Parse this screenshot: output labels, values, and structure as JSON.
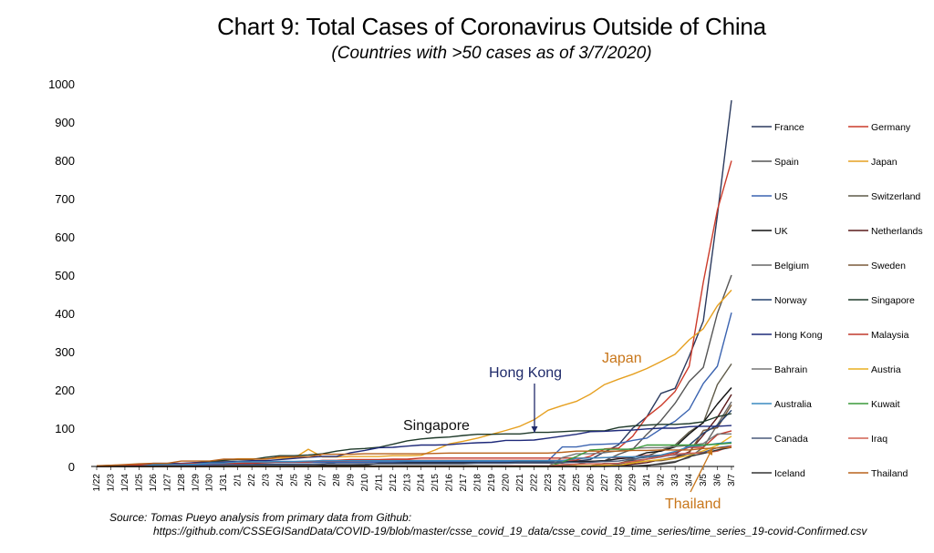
{
  "chart_data": {
    "type": "line",
    "title": "Chart 9: Total Cases of Coronavirus Outside of China",
    "subtitle": "(Countries with >50 cases as of 3/7/2020)",
    "xlabel": "",
    "ylabel": "",
    "ylim": [
      0,
      1000
    ],
    "yticks": [
      "0",
      "100",
      "200",
      "300",
      "400",
      "500",
      "600",
      "700",
      "800",
      "900",
      "1000"
    ],
    "categories": [
      "1/22",
      "1/23",
      "1/24",
      "1/25",
      "1/26",
      "1/27",
      "1/28",
      "1/29",
      "1/30",
      "1/31",
      "2/1",
      "2/2",
      "2/3",
      "2/4",
      "2/5",
      "2/6",
      "2/7",
      "2/8",
      "2/9",
      "2/10",
      "2/11",
      "2/12",
      "2/13",
      "2/14",
      "2/15",
      "2/16",
      "2/17",
      "2/18",
      "2/19",
      "2/20",
      "2/21",
      "2/22",
      "2/23",
      "2/24",
      "2/25",
      "2/26",
      "2/27",
      "2/28",
      "2/29",
      "3/1",
      "3/2",
      "3/3",
      "3/4",
      "3/5",
      "3/6",
      "3/7"
    ],
    "series": [
      {
        "name": "France",
        "color": "#2b3a5e",
        "values": [
          0,
          0,
          2,
          3,
          3,
          3,
          4,
          5,
          5,
          5,
          6,
          6,
          6,
          6,
          6,
          6,
          6,
          11,
          11,
          11,
          11,
          11,
          11,
          11,
          12,
          12,
          12,
          12,
          12,
          12,
          12,
          12,
          12,
          12,
          14,
          18,
          38,
          57,
          100,
          130,
          191,
          204,
          288,
          380,
          656,
          957
        ]
      },
      {
        "name": "Germany",
        "color": "#cc3b2a",
        "values": [
          0,
          0,
          0,
          0,
          0,
          1,
          4,
          4,
          4,
          5,
          8,
          10,
          12,
          12,
          12,
          12,
          13,
          13,
          14,
          14,
          16,
          16,
          16,
          16,
          16,
          16,
          16,
          16,
          16,
          16,
          16,
          16,
          16,
          16,
          17,
          27,
          46,
          48,
          79,
          130,
          159,
          196,
          262,
          482,
          670,
          799
        ]
      },
      {
        "name": "Spain",
        "color": "#555555",
        "values": [
          0,
          0,
          0,
          0,
          0,
          0,
          0,
          0,
          0,
          0,
          1,
          1,
          1,
          1,
          1,
          1,
          1,
          1,
          2,
          2,
          2,
          2,
          2,
          2,
          2,
          2,
          2,
          2,
          2,
          2,
          2,
          2,
          2,
          2,
          6,
          13,
          15,
          32,
          45,
          84,
          120,
          165,
          222,
          259,
          400,
          500
        ]
      },
      {
        "name": "Japan",
        "color": "#e6a020",
        "values": [
          2,
          1,
          2,
          2,
          4,
          4,
          7,
          7,
          11,
          15,
          20,
          20,
          20,
          22,
          22,
          45,
          25,
          25,
          26,
          26,
          26,
          28,
          28,
          29,
          43,
          59,
          66,
          74,
          84,
          94,
          105,
          122,
          147,
          159,
          170,
          189,
          214,
          228,
          241,
          256,
          274,
          293,
          331,
          360,
          420,
          461
        ]
      },
      {
        "name": "US",
        "color": "#3a63b0",
        "values": [
          1,
          1,
          2,
          2,
          5,
          5,
          5,
          5,
          5,
          7,
          8,
          8,
          11,
          11,
          11,
          11,
          11,
          11,
          11,
          11,
          12,
          12,
          13,
          13,
          13,
          13,
          13,
          13,
          13,
          13,
          15,
          15,
          15,
          51,
          51,
          57,
          58,
          60,
          68,
          74,
          98,
          118,
          149,
          217,
          262,
          402
        ]
      },
      {
        "name": "Switzerland",
        "color": "#5e5a48",
        "values": [
          0,
          0,
          0,
          0,
          0,
          0,
          0,
          0,
          0,
          0,
          0,
          0,
          0,
          0,
          0,
          0,
          0,
          0,
          0,
          0,
          0,
          0,
          0,
          0,
          0,
          0,
          0,
          0,
          0,
          0,
          0,
          0,
          0,
          0,
          1,
          1,
          8,
          8,
          18,
          27,
          42,
          56,
          90,
          114,
          214,
          268
        ]
      },
      {
        "name": "UK",
        "color": "#111111",
        "values": [
          0,
          0,
          0,
          0,
          0,
          0,
          0,
          0,
          0,
          2,
          2,
          2,
          2,
          2,
          2,
          2,
          3,
          3,
          3,
          4,
          8,
          8,
          9,
          9,
          9,
          9,
          9,
          9,
          9,
          9,
          9,
          9,
          9,
          9,
          13,
          13,
          15,
          20,
          23,
          36,
          40,
          51,
          85,
          115,
          163,
          206
        ]
      },
      {
        "name": "Netherlands",
        "color": "#5a1a1a",
        "values": [
          0,
          0,
          0,
          0,
          0,
          0,
          0,
          0,
          0,
          0,
          0,
          0,
          0,
          0,
          0,
          0,
          0,
          0,
          0,
          0,
          0,
          0,
          0,
          0,
          0,
          0,
          0,
          0,
          0,
          0,
          0,
          0,
          0,
          0,
          0,
          0,
          1,
          1,
          6,
          10,
          18,
          24,
          38,
          82,
          128,
          188
        ]
      },
      {
        "name": "Belgium",
        "color": "#666666",
        "values": [
          0,
          0,
          0,
          0,
          0,
          0,
          0,
          0,
          0,
          0,
          0,
          0,
          0,
          0,
          1,
          1,
          1,
          1,
          1,
          1,
          1,
          1,
          1,
          1,
          1,
          1,
          1,
          1,
          1,
          1,
          1,
          1,
          1,
          1,
          1,
          1,
          1,
          1,
          1,
          2,
          8,
          13,
          23,
          50,
          109,
          169
        ]
      },
      {
        "name": "Sweden",
        "color": "#7a5a3a",
        "values": [
          0,
          0,
          0,
          0,
          0,
          0,
          0,
          0,
          0,
          0,
          1,
          1,
          1,
          1,
          1,
          1,
          1,
          1,
          1,
          1,
          1,
          1,
          1,
          1,
          1,
          1,
          1,
          1,
          1,
          1,
          1,
          1,
          1,
          1,
          1,
          2,
          7,
          7,
          12,
          14,
          15,
          21,
          35,
          94,
          101,
          161
        ]
      },
      {
        "name": "Norway",
        "color": "#24406e",
        "values": [
          0,
          0,
          0,
          0,
          0,
          0,
          0,
          0,
          0,
          0,
          0,
          0,
          0,
          0,
          0,
          0,
          0,
          0,
          0,
          0,
          0,
          0,
          0,
          0,
          0,
          0,
          0,
          0,
          0,
          0,
          0,
          0,
          0,
          0,
          0,
          1,
          1,
          6,
          15,
          19,
          25,
          32,
          56,
          87,
          108,
          147
        ]
      },
      {
        "name": "Singapore",
        "color": "#1f3a2a",
        "values": [
          1,
          3,
          3,
          4,
          5,
          7,
          7,
          10,
          13,
          16,
          18,
          18,
          24,
          28,
          28,
          30,
          33,
          40,
          45,
          47,
          50,
          58,
          67,
          72,
          75,
          77,
          81,
          84,
          84,
          85,
          85,
          89,
          89,
          91,
          93,
          93,
          93,
          102,
          106,
          108,
          110,
          110,
          112,
          117,
          130,
          138
        ]
      },
      {
        "name": "Hong Kong",
        "color": "#1f2a7a",
        "values": [
          0,
          2,
          2,
          5,
          8,
          8,
          8,
          10,
          10,
          12,
          13,
          15,
          15,
          18,
          21,
          24,
          26,
          26,
          36,
          42,
          49,
          50,
          53,
          56,
          56,
          57,
          60,
          62,
          63,
          68,
          68,
          69,
          74,
          79,
          84,
          91,
          92,
          94,
          95,
          98,
          100,
          100,
          104,
          105,
          105,
          107
        ]
      },
      {
        "name": "Malaysia",
        "color": "#c0392b",
        "values": [
          0,
          0,
          3,
          4,
          4,
          4,
          7,
          8,
          8,
          8,
          8,
          8,
          10,
          12,
          12,
          12,
          16,
          16,
          18,
          18,
          18,
          19,
          19,
          22,
          22,
          22,
          22,
          22,
          22,
          22,
          22,
          22,
          22,
          22,
          22,
          22,
          23,
          23,
          25,
          29,
          29,
          36,
          50,
          50,
          83,
          93
        ]
      },
      {
        "name": "Bahrain",
        "color": "#777777",
        "values": [
          0,
          0,
          0,
          0,
          0,
          0,
          0,
          0,
          0,
          0,
          0,
          0,
          0,
          0,
          0,
          0,
          0,
          0,
          0,
          0,
          0,
          0,
          0,
          0,
          0,
          0,
          0,
          0,
          0,
          0,
          0,
          0,
          0,
          23,
          33,
          33,
          36,
          41,
          47,
          49,
          49,
          52,
          55,
          60,
          85,
          85
        ]
      },
      {
        "name": "Austria",
        "color": "#e8b020",
        "values": [
          0,
          0,
          0,
          0,
          0,
          0,
          0,
          0,
          0,
          0,
          0,
          0,
          0,
          0,
          0,
          0,
          0,
          0,
          0,
          0,
          0,
          0,
          0,
          0,
          0,
          0,
          0,
          0,
          0,
          0,
          0,
          0,
          0,
          0,
          2,
          2,
          3,
          3,
          9,
          14,
          18,
          21,
          29,
          41,
          55,
          79
        ]
      },
      {
        "name": "Australia",
        "color": "#3a8ac0",
        "values": [
          0,
          0,
          0,
          0,
          4,
          5,
          5,
          6,
          9,
          9,
          12,
          12,
          12,
          13,
          13,
          14,
          15,
          15,
          15,
          15,
          15,
          15,
          15,
          15,
          15,
          15,
          15,
          15,
          15,
          15,
          15,
          15,
          15,
          15,
          21,
          22,
          23,
          25,
          25,
          27,
          30,
          39,
          52,
          55,
          60,
          63
        ]
      },
      {
        "name": "Kuwait",
        "color": "#3a9a3a",
        "values": [
          0,
          0,
          0,
          0,
          0,
          0,
          0,
          0,
          0,
          0,
          0,
          0,
          0,
          0,
          0,
          0,
          0,
          0,
          0,
          0,
          0,
          0,
          0,
          0,
          0,
          0,
          0,
          0,
          0,
          0,
          0,
          0,
          0,
          11,
          26,
          43,
          45,
          45,
          45,
          56,
          56,
          56,
          56,
          56,
          58,
          61
        ]
      },
      {
        "name": "Canada",
        "color": "#4a5a7a",
        "values": [
          0,
          0,
          0,
          0,
          1,
          1,
          2,
          2,
          2,
          4,
          4,
          4,
          4,
          4,
          5,
          5,
          7,
          7,
          7,
          7,
          7,
          7,
          7,
          7,
          7,
          7,
          7,
          8,
          8,
          8,
          9,
          9,
          9,
          10,
          11,
          11,
          13,
          14,
          20,
          24,
          27,
          30,
          33,
          37,
          49,
          54
        ]
      },
      {
        "name": "Iraq",
        "color": "#d06050",
        "values": [
          0,
          0,
          0,
          0,
          0,
          0,
          0,
          0,
          0,
          0,
          0,
          0,
          0,
          0,
          0,
          0,
          0,
          0,
          0,
          0,
          0,
          0,
          0,
          0,
          0,
          0,
          0,
          0,
          0,
          1,
          1,
          1,
          1,
          5,
          6,
          7,
          7,
          8,
          13,
          19,
          26,
          32,
          35,
          35,
          40,
          54
        ]
      },
      {
        "name": "Iceland",
        "color": "#333333",
        "values": [
          0,
          0,
          0,
          0,
          0,
          0,
          0,
          0,
          0,
          0,
          0,
          0,
          0,
          0,
          0,
          0,
          0,
          0,
          0,
          0,
          0,
          0,
          0,
          0,
          0,
          0,
          0,
          0,
          0,
          0,
          0,
          0,
          0,
          0,
          0,
          0,
          0,
          1,
          1,
          3,
          6,
          11,
          26,
          34,
          43,
          50
        ]
      },
      {
        "name": "Thailand",
        "color": "#b8621b",
        "values": [
          2,
          3,
          5,
          7,
          8,
          8,
          14,
          14,
          14,
          19,
          19,
          19,
          19,
          25,
          25,
          25,
          32,
          32,
          32,
          33,
          33,
          33,
          33,
          33,
          34,
          35,
          35,
          35,
          35,
          35,
          35,
          35,
          35,
          37,
          40,
          40,
          40,
          40,
          42,
          42,
          43,
          43,
          43,
          47,
          48,
          50
        ]
      }
    ],
    "annotations": [
      {
        "text": "Japan",
        "series": "Japan",
        "color": "#c8761a"
      },
      {
        "text": "Hong Kong",
        "series": "Hong Kong",
        "color": "#1f2a6a"
      },
      {
        "text": "Singapore",
        "series": "Singapore",
        "color": "#111111"
      },
      {
        "text": "Thailand",
        "series": "Thailand",
        "color": "#c8761a"
      }
    ],
    "legend_position": "right",
    "grid": false
  },
  "source": {
    "line1": "Source: Tomas Pueyo analysis from primary data from Github:",
    "line2": "https://github.com/CSSEGISandData/COVID-19/blob/master/csse_covid_19_data/csse_covid_19_time_series/time_series_19-covid-Confirmed.csv"
  }
}
